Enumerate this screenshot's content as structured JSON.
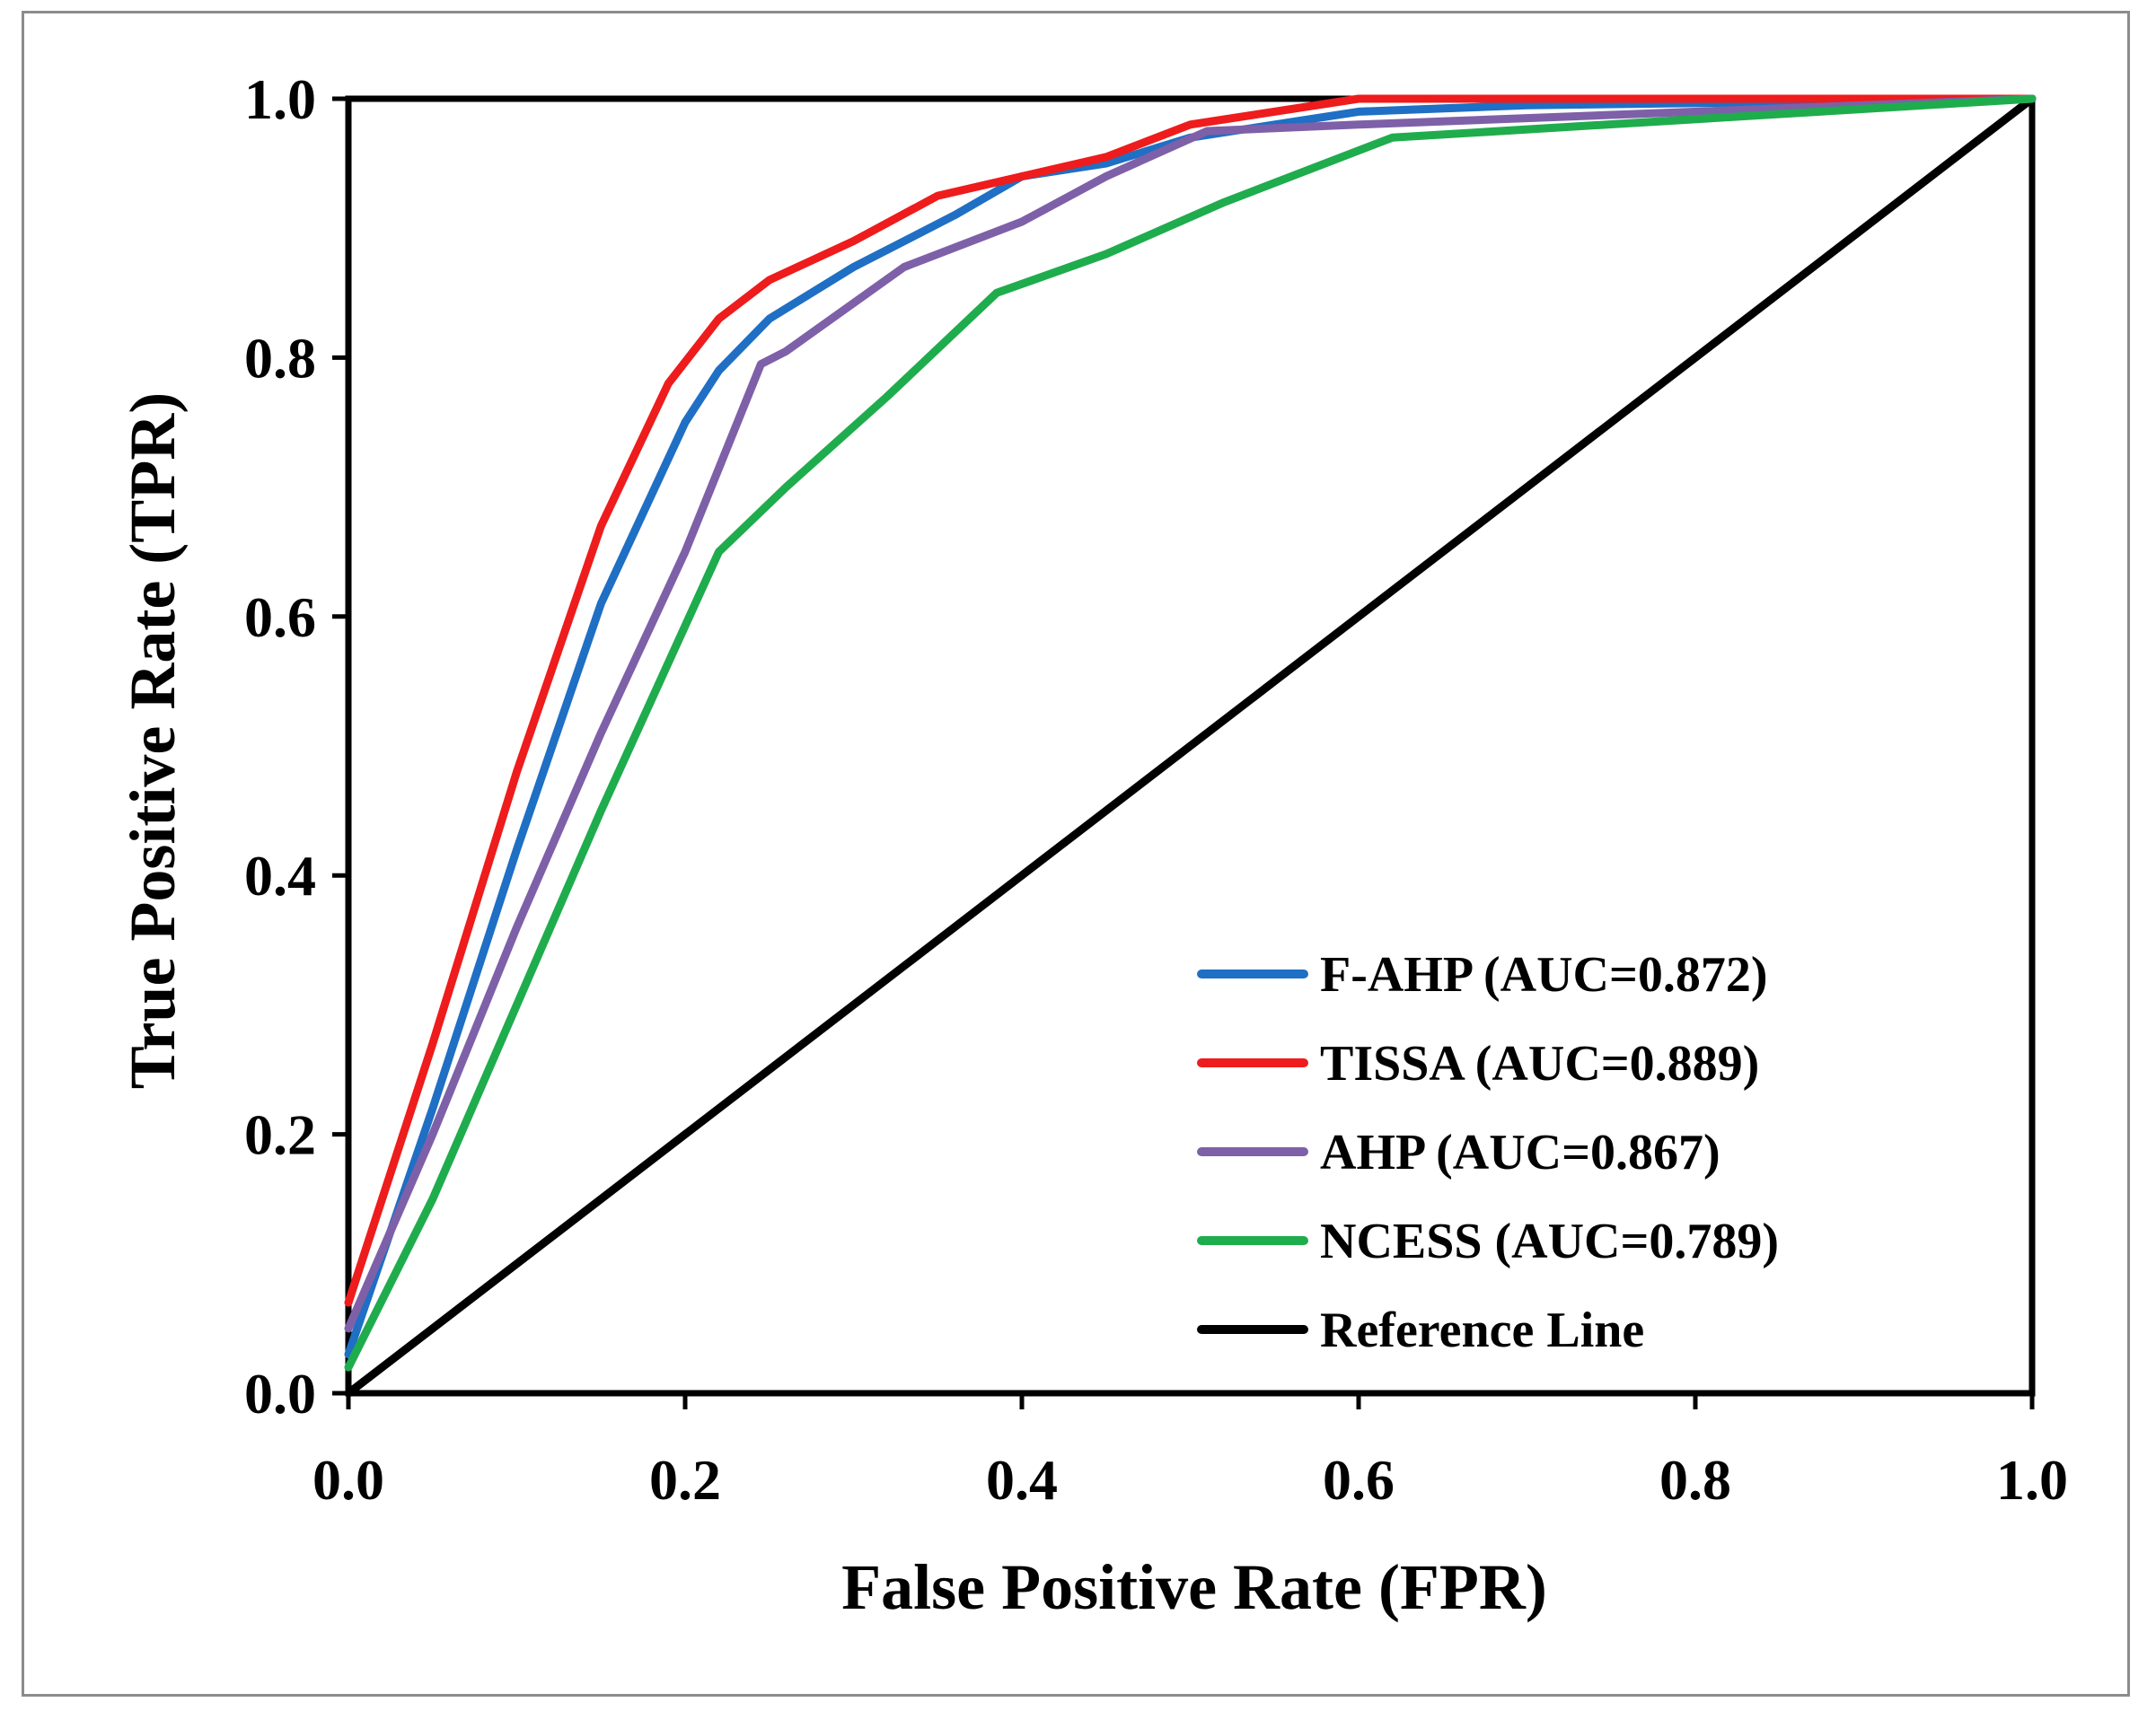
{
  "chart_data": {
    "type": "line",
    "title": "",
    "xlabel": "False Positive Rate (FPR)",
    "ylabel": "True Positive Rate (TPR)",
    "xlim": [
      0,
      1
    ],
    "ylim": [
      0,
      1
    ],
    "grid": false,
    "legend_position": "bottom-right",
    "xticks": [
      "0.0",
      "0.2",
      "0.4",
      "0.6",
      "0.8",
      "1.0"
    ],
    "yticks": [
      "0.0",
      "0.2",
      "0.4",
      "0.6",
      "0.8",
      "1.0"
    ],
    "series": [
      {
        "name": "F-AHP (AUC=0.872)",
        "color": "#1f6fc4",
        "x": [
          0.0,
          0.05,
          0.1,
          0.15,
          0.2,
          0.22,
          0.25,
          0.3,
          0.36,
          0.4,
          0.45,
          0.5,
          0.6,
          0.7,
          1.0
        ],
        "y": [
          0.03,
          0.22,
          0.42,
          0.61,
          0.75,
          0.79,
          0.83,
          0.87,
          0.91,
          0.94,
          0.95,
          0.97,
          0.99,
          0.995,
          1.0
        ]
      },
      {
        "name": "TISSA (AUC=0.889)",
        "color": "#ee1c1c",
        "x": [
          0.0,
          0.05,
          0.1,
          0.15,
          0.19,
          0.22,
          0.25,
          0.3,
          0.35,
          0.4,
          0.45,
          0.5,
          0.6,
          1.0
        ],
        "y": [
          0.07,
          0.27,
          0.48,
          0.67,
          0.78,
          0.83,
          0.86,
          0.89,
          0.925,
          0.94,
          0.955,
          0.98,
          1.0,
          1.0
        ]
      },
      {
        "name": "AHP (AUC=0.867)",
        "color": "#7e60a8",
        "x": [
          0.0,
          0.05,
          0.1,
          0.15,
          0.2,
          0.245,
          0.26,
          0.33,
          0.4,
          0.45,
          0.51,
          0.6,
          1.0
        ],
        "y": [
          0.05,
          0.2,
          0.36,
          0.51,
          0.65,
          0.795,
          0.805,
          0.87,
          0.905,
          0.94,
          0.975,
          0.98,
          1.0
        ]
      },
      {
        "name": "NCESS (AUC=0.789)",
        "color": "#1fac4d",
        "x": [
          0.0,
          0.05,
          0.1,
          0.15,
          0.22,
          0.26,
          0.32,
          0.385,
          0.45,
          0.52,
          0.62,
          1.0
        ],
        "y": [
          0.02,
          0.15,
          0.3,
          0.45,
          0.65,
          0.7,
          0.77,
          0.85,
          0.88,
          0.92,
          0.97,
          1.0
        ]
      },
      {
        "name": "Reference Line",
        "color": "#000000",
        "x": [
          0.0,
          1.0
        ],
        "y": [
          0.0,
          1.0
        ]
      }
    ]
  }
}
